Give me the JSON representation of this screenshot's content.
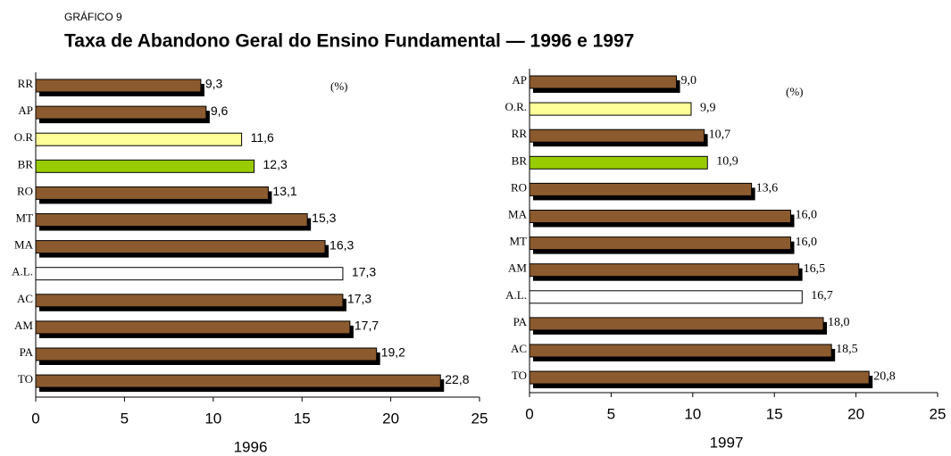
{
  "header": {
    "label": "GRÁFICO 9",
    "title": "Taxa de Abandono Geral do Ensino Fundamental — 1996 e 1997"
  },
  "chart_data": [
    {
      "type": "bar",
      "orientation": "horizontal",
      "annotation": "(%)",
      "x_label": "1996",
      "categories": [
        "RR",
        "AP",
        "O.R",
        "BR",
        "RO",
        "MT",
        "MA",
        "A.L.",
        "AC",
        "AM",
        "PA",
        "TO"
      ],
      "values": [
        9.3,
        9.6,
        11.6,
        12.3,
        13.1,
        15.3,
        16.3,
        17.3,
        17.3,
        17.7,
        19.2,
        22.8
      ],
      "value_labels": [
        "9,3",
        "9,6",
        "11,6",
        "12,3",
        "13,1",
        "15,3",
        "16,3",
        "17,3",
        "17,3",
        "17,7",
        "19,2",
        "22,8"
      ],
      "colors": [
        "#8b5a2e",
        "#8b5a2e",
        "#ffff99",
        "#99cc00",
        "#8b5a2e",
        "#8b5a2e",
        "#8b5a2e",
        "#ffffff",
        "#8b5a2e",
        "#8b5a2e",
        "#8b5a2e",
        "#8b5a2e"
      ],
      "xlim": [
        0,
        25
      ],
      "xticks": [
        0,
        5,
        10,
        15,
        20,
        25
      ]
    },
    {
      "type": "bar",
      "orientation": "horizontal",
      "annotation": "(%)",
      "x_label": "1997",
      "categories": [
        "AP",
        "O.R.",
        "RR",
        "BR",
        "RO",
        "MA",
        "MT",
        "AM",
        "A.L.",
        "PA",
        "AC",
        "TO"
      ],
      "values": [
        9.0,
        9.9,
        10.7,
        10.9,
        13.6,
        16.0,
        16.0,
        16.5,
        16.7,
        18.0,
        18.5,
        20.8
      ],
      "value_labels": [
        "9,0",
        "9,9",
        "10,7",
        "10,9",
        "13,6",
        "16,0",
        "16,0",
        "16,5",
        "16,7",
        "18,0",
        "18,5",
        "20,8"
      ],
      "colors": [
        "#8b5a2e",
        "#ffff99",
        "#8b5a2e",
        "#99cc00",
        "#8b5a2e",
        "#8b5a2e",
        "#8b5a2e",
        "#8b5a2e",
        "#ffffff",
        "#8b5a2e",
        "#8b5a2e",
        "#8b5a2e"
      ],
      "xlim": [
        0,
        25
      ],
      "xticks": [
        0,
        5,
        10,
        15,
        20,
        25
      ]
    }
  ]
}
